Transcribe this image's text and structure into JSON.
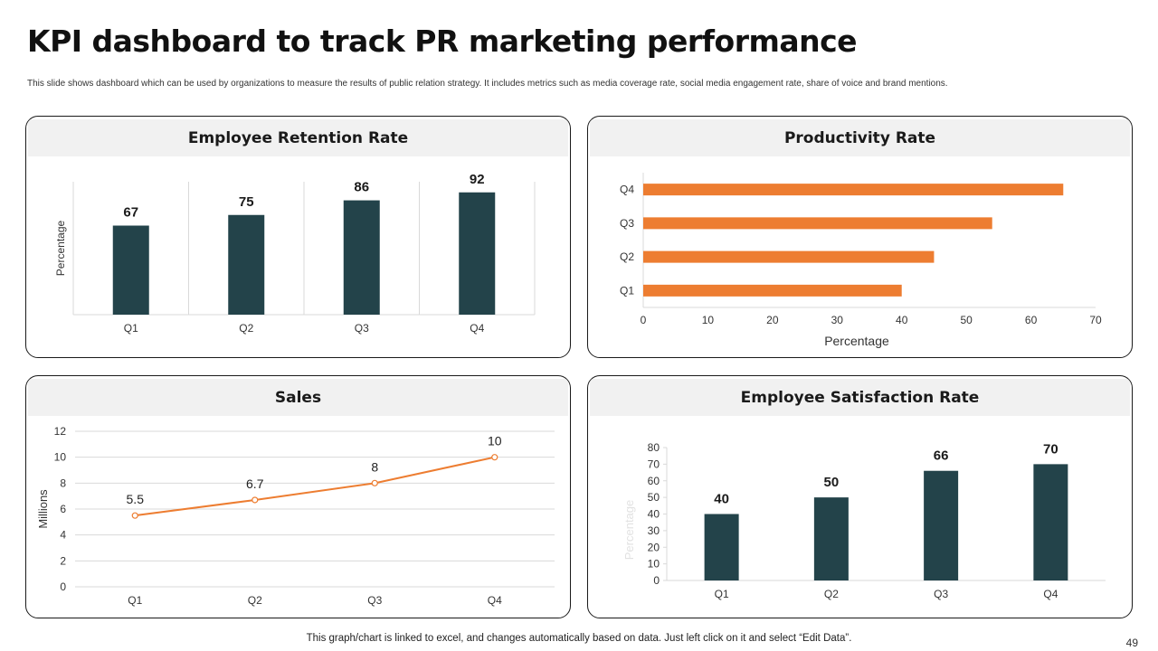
{
  "page": {
    "title": "KPI dashboard to track PR marketing performance",
    "subtitle": "This slide shows dashboard which can be used by organizations to measure the results of public relation strategy. It includes metrics such as media  coverage rate, social media  engagement  rate, share of voice and brand mentions.",
    "footer": "This graph/chart is linked to excel,  and changes automatically based on data. Just left click on it and select “Edit Data”.",
    "page_number": "49"
  },
  "colors": {
    "dark": "#23434a",
    "orange": "#ed7d31",
    "grid": "#d9d9d9",
    "axis_text": "#333333"
  },
  "chart_data": [
    {
      "type": "bar",
      "title": "Employee Retention Rate",
      "categories": [
        "Q1",
        "Q2",
        "Q3",
        "Q4"
      ],
      "values": [
        67,
        75,
        86,
        92
      ],
      "ylabel": "Percentage",
      "ylim": [
        0,
        100
      ],
      "data_labels": true,
      "grid": "vertical separators"
    },
    {
      "type": "bar",
      "orientation": "horizontal",
      "title": "Productivity Rate",
      "categories": [
        "Q1",
        "Q2",
        "Q3",
        "Q4"
      ],
      "values": [
        40,
        45,
        54,
        65
      ],
      "xlabel": "Percentage",
      "xlim": [
        0,
        70
      ],
      "xticks": [
        0,
        10,
        20,
        30,
        40,
        50,
        60,
        70
      ]
    },
    {
      "type": "line",
      "title": "Sales",
      "categories": [
        "Q1",
        "Q2",
        "Q3",
        "Q4"
      ],
      "values": [
        5.5,
        6.7,
        8,
        10
      ],
      "value_labels": [
        "5.5",
        "6.7",
        "8",
        "10"
      ],
      "ylabel": "Millions",
      "ylim": [
        0,
        12
      ],
      "yticks": [
        0,
        2,
        4,
        6,
        8,
        10,
        12
      ],
      "grid": true
    },
    {
      "type": "bar",
      "title": "Employee Satisfaction Rate",
      "categories": [
        "Q1",
        "Q2",
        "Q3",
        "Q4"
      ],
      "values": [
        40,
        50,
        66,
        70
      ],
      "ylabel": "Percentage",
      "ylim": [
        0,
        80
      ],
      "yticks": [
        0,
        10,
        20,
        30,
        40,
        50,
        60,
        70,
        80
      ],
      "data_labels": true
    }
  ]
}
